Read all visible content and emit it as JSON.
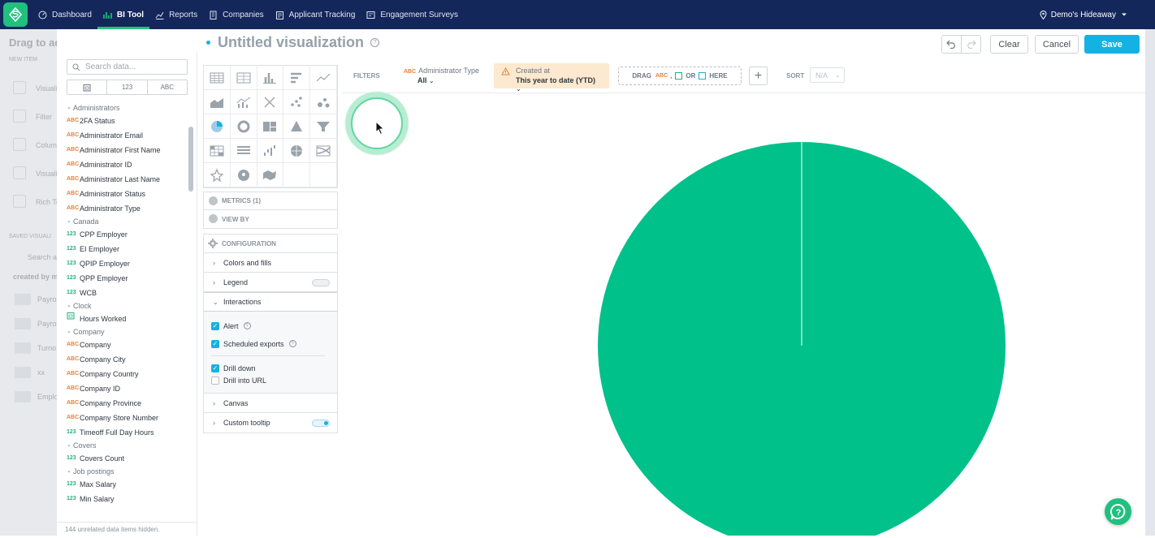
{
  "nav": {
    "items": [
      {
        "label": "Dashboard",
        "icon": "dashboard-icon"
      },
      {
        "label": "BI Tool",
        "icon": "bar-chart-icon",
        "active": true
      },
      {
        "label": "Reports",
        "icon": "line-chart-icon"
      },
      {
        "label": "Companies",
        "icon": "building-icon"
      },
      {
        "label": "Applicant Tracking",
        "icon": "clipboard-icon"
      },
      {
        "label": "Engagement Surveys",
        "icon": "survey-icon"
      }
    ],
    "location": "Demo's Hideaway",
    "accent": "#21c47e",
    "background": "#14275b"
  },
  "backdrop": {
    "title": "Drag to ad",
    "new_item": "NEW ITEM",
    "items": [
      "Visuali",
      "Filter",
      "Colum",
      "Visuali",
      "Rich Te"
    ],
    "saved": "SAVED VISUALI",
    "search": "Search a",
    "created": "created by m",
    "saved_items": [
      "Payro",
      "Payro",
      "Turno",
      "xx",
      "Emplo"
    ]
  },
  "editor": {
    "title": "Untitled visualization",
    "buttons": {
      "clear": "Clear",
      "cancel": "Cancel",
      "save": "Save"
    }
  },
  "catalog": {
    "search_placeholder": "Search data...",
    "type_filters": [
      "date",
      "123",
      "ABC"
    ],
    "groups": [
      {
        "name": "Administrators",
        "items": [
          {
            "type": "ABC",
            "label": "2FA Status"
          },
          {
            "type": "ABC",
            "label": "Administrator Email"
          },
          {
            "type": "ABC",
            "label": "Administrator First Name"
          },
          {
            "type": "ABC",
            "label": "Administrator ID"
          },
          {
            "type": "ABC",
            "label": "Administrator Last Name"
          },
          {
            "type": "ABC",
            "label": "Administrator Status"
          },
          {
            "type": "ABC",
            "label": "Administrator Type"
          }
        ]
      },
      {
        "name": "Canada",
        "items": [
          {
            "type": "123",
            "label": "CPP Employer"
          },
          {
            "type": "123",
            "label": "EI Employer"
          },
          {
            "type": "123",
            "label": "QPIP Employer"
          },
          {
            "type": "123",
            "label": "QPP Employer"
          },
          {
            "type": "123",
            "label": "WCB"
          }
        ]
      },
      {
        "name": "Clock",
        "items": [
          {
            "type": "date",
            "label": "Hours Worked"
          }
        ]
      },
      {
        "name": "Company",
        "items": [
          {
            "type": "ABC",
            "label": "Company"
          },
          {
            "type": "ABC",
            "label": "Company City"
          },
          {
            "type": "ABC",
            "label": "Company Country"
          },
          {
            "type": "ABC",
            "label": "Company ID"
          },
          {
            "type": "ABC",
            "label": "Company Province"
          },
          {
            "type": "ABC",
            "label": "Company Store Number"
          },
          {
            "type": "123",
            "label": "Timeoff Full Day Hours"
          }
        ]
      },
      {
        "name": "Covers",
        "items": [
          {
            "type": "123",
            "label": "Covers Count"
          }
        ]
      },
      {
        "name": "Job postings",
        "items": [
          {
            "type": "123",
            "label": "Max Salary"
          },
          {
            "type": "123",
            "label": "Min Salary"
          }
        ]
      }
    ],
    "hidden_note": "144 unrelated data items hidden."
  },
  "panel": {
    "metrics": "METRICS (1)",
    "view_by": "VIEW BY",
    "configuration": "CONFIGURATION",
    "colors": "Colors and fills",
    "legend": "Legend",
    "interactions": "Interactions",
    "alert": "Alert",
    "scheduled": "Scheduled exports",
    "drill_down": "Drill down",
    "drill_url": "Drill into URL",
    "canvas": "Canvas",
    "tooltip": "Custom tooltip"
  },
  "filters": {
    "label": "FILTERS",
    "admin_type_label": "Administrator Type",
    "admin_type_value": "All",
    "created_label": "Created at",
    "created_value": "This year to date (YTD)",
    "drag_prefix": "DRAG",
    "drag_abc": "ABC",
    "drag_or": "OR",
    "drag_suffix": "HERE",
    "sort_label": "SORT",
    "sort_value": "N/A"
  },
  "chart_data": {
    "type": "pie",
    "slices": [
      {
        "value": 100
      }
    ],
    "color": "#00c18a"
  }
}
